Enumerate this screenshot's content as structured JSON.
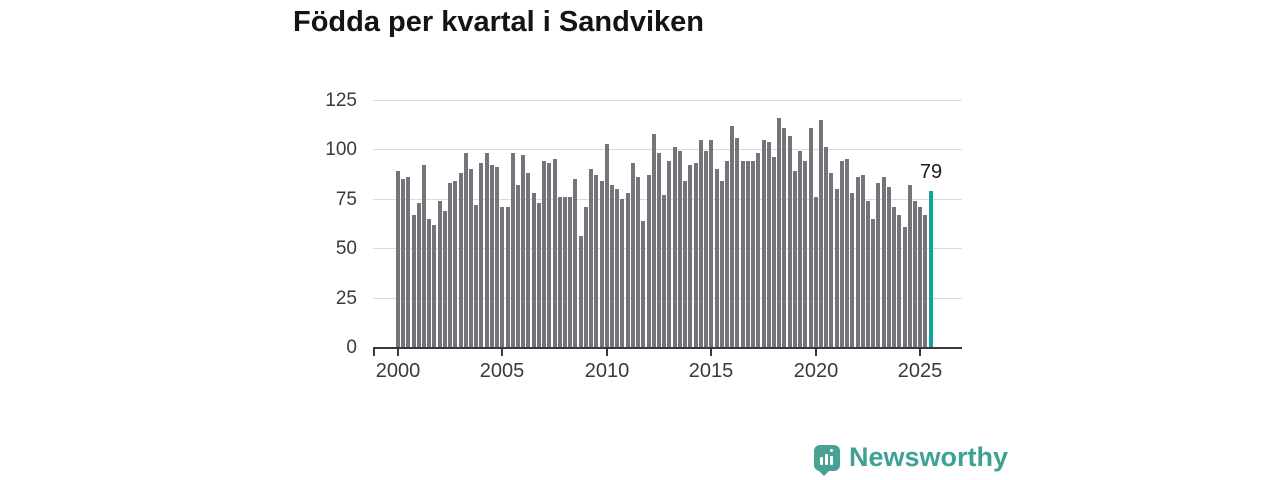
{
  "title": "Födda per kvartal i Sandviken",
  "annotation": {
    "label": "79"
  },
  "footer": {
    "brand": "Newsworthy"
  },
  "colors": {
    "bar": "#74747b",
    "highlight": "#12a39e",
    "gridline": "#dcdcdc",
    "axis": "#3a3a3a",
    "title_text": "#141414",
    "brand_teal": "#3fa193"
  },
  "chart_data": {
    "type": "bar",
    "title": "Födda per kvartal i Sandviken",
    "xlabel": "",
    "ylabel": "",
    "x_start_year": 2000,
    "x_interval": "quarter",
    "x_tick_labels": [
      "2000",
      "2005",
      "2010",
      "2015",
      "2020",
      "2025"
    ],
    "y_ticks": [
      0,
      25,
      50,
      75,
      100,
      125
    ],
    "ylim": [
      0,
      125
    ],
    "grid": true,
    "legend": false,
    "series": [
      {
        "name": "Födda per kvartal",
        "values": [
          89,
          85,
          86,
          67,
          73,
          92,
          65,
          62,
          74,
          69,
          83,
          84,
          88,
          98,
          90,
          72,
          93,
          98,
          92,
          91,
          71,
          71,
          98,
          82,
          97,
          88,
          78,
          73,
          94,
          93,
          95,
          76,
          76,
          76,
          85,
          56,
          71,
          90,
          87,
          84,
          103,
          82,
          80,
          75,
          78,
          93,
          86,
          64,
          87,
          108,
          98,
          77,
          94,
          101,
          99,
          84,
          92,
          93,
          105,
          99,
          105,
          90,
          84,
          94,
          112,
          106,
          94,
          94,
          94,
          98,
          105,
          104,
          96,
          116,
          111,
          107,
          89,
          99,
          94,
          111,
          76,
          115,
          101,
          88,
          80,
          94,
          95,
          78,
          86,
          87,
          74,
          65,
          83,
          86,
          81,
          71,
          67,
          61,
          82,
          74,
          71,
          67,
          79
        ]
      }
    ],
    "highlight": {
      "index": 102,
      "value": 79
    }
  }
}
